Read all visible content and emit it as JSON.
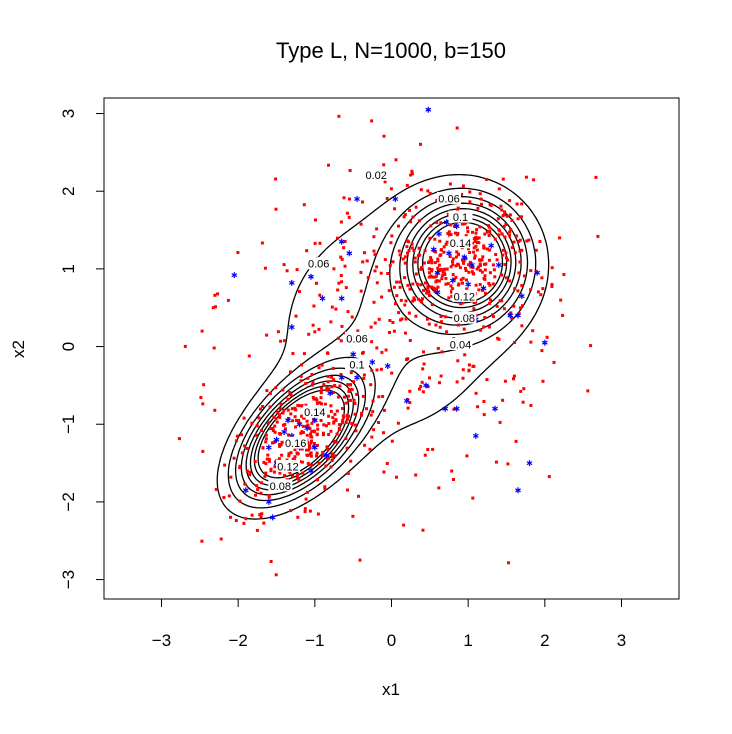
{
  "chart_data": {
    "type": "scatter",
    "title": "Type L, N=1000, b=150",
    "xlabel": "x1",
    "ylabel": "x2",
    "xlim": [
      -3.75,
      3.75
    ],
    "ylim": [
      -3.25,
      3.2
    ],
    "x_ticks": [
      -3,
      -2,
      -1,
      0,
      1,
      2,
      3
    ],
    "y_ticks": [
      -3,
      -2,
      -1,
      0,
      1,
      2,
      3
    ],
    "x_tick_labels": [
      "−3",
      "−2",
      "−1",
      "0",
      "1",
      "2",
      "3"
    ],
    "y_tick_labels": [
      "−3",
      "−2",
      "−1",
      "0",
      "1",
      "2",
      "3"
    ],
    "grid": false,
    "colors": {
      "points": "#ff0000",
      "highlight": "#0000ff",
      "contour": "#000000"
    },
    "series": [
      {
        "marker": "square",
        "color": "#ff0000",
        "sample_size": 1000,
        "components": [
          {
            "mean": [
              -1.2,
              -1.15
            ],
            "sd": [
              0.45,
              0.45
            ],
            "corr": 0.55,
            "weight": 0.34
          },
          {
            "mean": [
              0.95,
              1.1
            ],
            "sd": [
              0.45,
              0.45
            ],
            "corr": 0.0,
            "weight": 0.34
          },
          {
            "mean": [
              0.0,
              0.3
            ],
            "sd": [
              1.1,
              1.1
            ],
            "corr": 0.1,
            "weight": 0.32
          }
        ]
      },
      {
        "marker": "asterisk",
        "color": "#0000ff",
        "points": [
          [
            0.48,
            3.05
          ],
          [
            -0.45,
            1.9
          ],
          [
            0.05,
            1.9
          ],
          [
            0.72,
            1.6
          ],
          [
            0.85,
            1.55
          ],
          [
            0.62,
            1.45
          ],
          [
            0.55,
            1.25
          ],
          [
            0.75,
            1.2
          ],
          [
            0.95,
            1.15
          ],
          [
            1.05,
            1.05
          ],
          [
            1.3,
            1.3
          ],
          [
            1.4,
            1.05
          ],
          [
            0.6,
            0.95
          ],
          [
            0.8,
            0.85
          ],
          [
            1.0,
            0.8
          ],
          [
            1.2,
            0.75
          ],
          [
            0.9,
            0.6
          ],
          [
            0.6,
            0.7
          ],
          [
            1.55,
            0.4
          ],
          [
            1.65,
            0.4
          ],
          [
            1.7,
            0.65
          ],
          [
            1.9,
            0.95
          ],
          [
            2.0,
            0.05
          ],
          [
            1.1,
            0.35
          ],
          [
            -2.05,
            0.92
          ],
          [
            -1.3,
            0.82
          ],
          [
            -1.05,
            0.9
          ],
          [
            -0.9,
            0.62
          ],
          [
            -0.65,
            0.62
          ],
          [
            -0.55,
            1.2
          ],
          [
            -0.65,
            1.35
          ],
          [
            -1.3,
            0.25
          ],
          [
            -0.05,
            -0.25
          ],
          [
            -0.25,
            -0.2
          ],
          [
            -0.5,
            -0.1
          ],
          [
            -0.65,
            -0.4
          ],
          [
            -0.45,
            -0.4
          ],
          [
            -0.8,
            -0.6
          ],
          [
            -0.9,
            -0.8
          ],
          [
            -1.0,
            -0.95
          ],
          [
            -1.1,
            -1.05
          ],
          [
            -1.2,
            -1.0
          ],
          [
            -1.3,
            -1.15
          ],
          [
            -1.4,
            -1.1
          ],
          [
            -1.5,
            -1.2
          ],
          [
            -1.6,
            -1.3
          ],
          [
            -1.5,
            -1.5
          ],
          [
            -1.2,
            -1.3
          ],
          [
            -1.0,
            -1.3
          ],
          [
            -0.85,
            -1.4
          ],
          [
            -1.05,
            -1.6
          ],
          [
            -1.4,
            -1.75
          ],
          [
            -1.6,
            -2.0
          ],
          [
            -1.55,
            -2.2
          ],
          [
            -1.9,
            -1.85
          ],
          [
            -1.35,
            -0.95
          ],
          [
            -1.1,
            -0.8
          ],
          [
            0.2,
            -0.7
          ],
          [
            0.45,
            -0.5
          ],
          [
            0.85,
            -0.8
          ],
          [
            1.1,
            -1.15
          ],
          [
            1.35,
            -0.8
          ],
          [
            1.65,
            -1.85
          ],
          [
            1.8,
            -1.5
          ],
          [
            0.7,
            -0.8
          ]
        ]
      }
    ],
    "contour_labels": [
      {
        "text": "0.02",
        "x": -0.2,
        "y": 2.2
      },
      {
        "text": "0.04",
        "x": 0.9,
        "y": 0.02
      },
      {
        "text": "0.06",
        "x": -0.45,
        "y": 0.1
      },
      {
        "text": "0.06",
        "x": 0.75,
        "y": 1.9
      },
      {
        "text": "0.06",
        "x": -0.95,
        "y": 1.06
      },
      {
        "text": "0.08",
        "x": 0.95,
        "y": 0.36
      },
      {
        "text": "0.08",
        "x": -1.45,
        "y": -1.8
      },
      {
        "text": "0.1",
        "x": 0.9,
        "y": 1.66
      },
      {
        "text": "0.1",
        "x": -0.45,
        "y": -0.24
      },
      {
        "text": "0.12",
        "x": 0.95,
        "y": 0.64
      },
      {
        "text": "0.12",
        "x": -1.35,
        "y": -1.55
      },
      {
        "text": "0.14",
        "x": 0.9,
        "y": 1.33
      },
      {
        "text": "0.14",
        "x": -1.0,
        "y": -0.85
      },
      {
        "text": "0.16",
        "x": -1.25,
        "y": -1.25
      }
    ]
  }
}
